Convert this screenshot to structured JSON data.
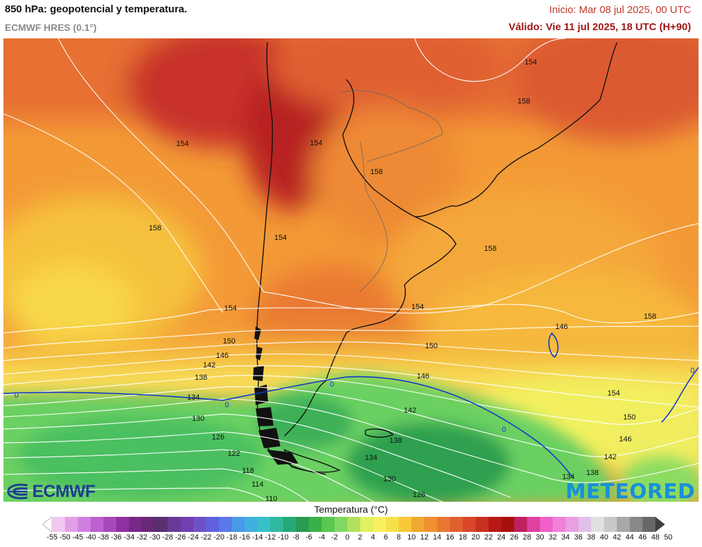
{
  "header": {
    "title": "850 hPa: geopotencial y temperatura.",
    "model": "ECMWF HRES (0.1°)",
    "run": "Inicio: Mar 08 jul 2025, 00 UTC",
    "valid": "Válido: Vie 11 jul 2025, 18 UTC (H+90)"
  },
  "logos": {
    "ecmwf": "ECMWF",
    "meteored": "METEORED"
  },
  "legend": {
    "title": "Temperatura (°C)",
    "ticks": [
      "-55",
      "-50",
      "-45",
      "-40",
      "-38",
      "-36",
      "-34",
      "-32",
      "-30",
      "-28",
      "-26",
      "-24",
      "-22",
      "-20",
      "-18",
      "-16",
      "-14",
      "-12",
      "-10",
      "-8",
      "-6",
      "-4",
      "-2",
      "0",
      "2",
      "4",
      "6",
      "8",
      "10",
      "12",
      "14",
      "16",
      "18",
      "20",
      "22",
      "24",
      "26",
      "28",
      "30",
      "32",
      "34",
      "36",
      "38",
      "40",
      "42",
      "44",
      "46",
      "48",
      "50"
    ],
    "colors": [
      "#ffffff",
      "#f0c8f0",
      "#e0a0e8",
      "#d080e0",
      "#c060d0",
      "#a848b8",
      "#9030a0",
      "#782888",
      "#682878",
      "#583070",
      "#6a3a98",
      "#7040b0",
      "#7050c8",
      "#6060e0",
      "#5a78e8",
      "#4a98e8",
      "#40b0e0",
      "#38c0c8",
      "#30b8a0",
      "#28a878",
      "#2a9a50",
      "#3ab048",
      "#58c850",
      "#80d860",
      "#b0e060",
      "#e0f060",
      "#f8f060",
      "#f8e048",
      "#f8c838",
      "#f0a830",
      "#f09030",
      "#e87830",
      "#e06030",
      "#d84828",
      "#c83020",
      "#b81818",
      "#a81010",
      "#c02060",
      "#e040a0",
      "#f060c8",
      "#f080d8",
      "#e8a0e0",
      "#e0c0e8",
      "#e0e0e0",
      "#c8c8c8",
      "#a8a8a8",
      "#888888",
      "#686868",
      "#404040"
    ]
  },
  "map": {
    "contour_labels": [
      "154",
      "158",
      "154",
      "158",
      "158",
      "154",
      "154",
      "158",
      "154",
      "154",
      "158",
      "150",
      "150",
      "146",
      "146",
      "142",
      "138",
      "134",
      "130",
      "126",
      "122",
      "118",
      "114",
      "110",
      "146",
      "142",
      "154",
      "150",
      "146",
      "142",
      "138",
      "134",
      "130",
      "126",
      "138",
      "134",
      "0",
      "0",
      "0",
      "0",
      "0"
    ]
  }
}
